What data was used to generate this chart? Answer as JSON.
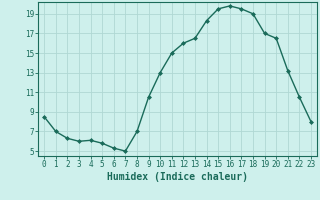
{
  "x": [
    0,
    1,
    2,
    3,
    4,
    5,
    6,
    7,
    8,
    9,
    10,
    11,
    12,
    13,
    14,
    15,
    16,
    17,
    18,
    19,
    20,
    21,
    22,
    23
  ],
  "y": [
    8.5,
    7.0,
    6.3,
    6.0,
    6.1,
    5.8,
    5.3,
    5.0,
    7.0,
    10.5,
    13.0,
    15.0,
    16.0,
    16.5,
    18.3,
    19.5,
    19.8,
    19.5,
    19.0,
    17.0,
    16.5,
    13.2,
    10.5,
    8.0
  ],
  "line_color": "#1a6b5a",
  "marker": "D",
  "marker_size": 2,
  "bg_color": "#cef0ec",
  "grid_color": "#b0d8d4",
  "xlabel": "Humidex (Indice chaleur)",
  "yticks": [
    5,
    7,
    9,
    11,
    13,
    15,
    17,
    19
  ],
  "ylim": [
    4.5,
    20.2
  ],
  "xlim": [
    -0.5,
    23.5
  ],
  "tick_color": "#1a6b5a",
  "label_color": "#1a6b5a",
  "axis_color": "#1a6b5a",
  "tick_fontsize": 5.5,
  "label_fontsize": 7.0
}
